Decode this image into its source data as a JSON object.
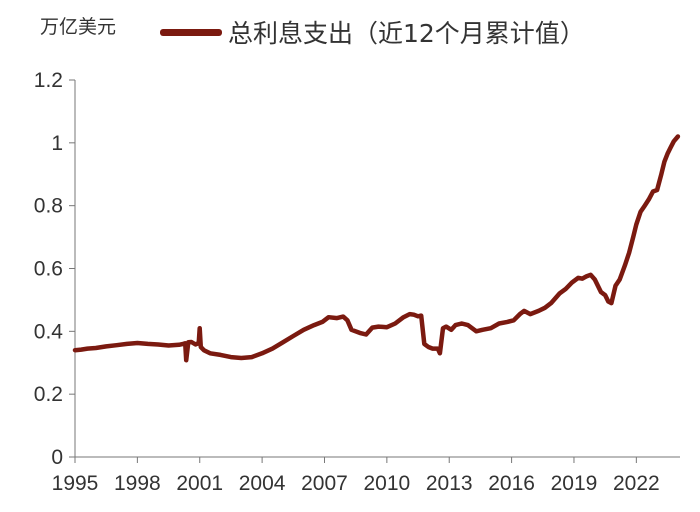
{
  "chart_data": {
    "type": "line",
    "unit_label": "万亿美元",
    "color": "#7B1A10",
    "ylim": [
      0,
      1.2
    ],
    "y_ticks": [
      "0",
      "0.2",
      "0.4",
      "0.6",
      "0.8",
      "1",
      "1.2"
    ],
    "xlim": [
      1995.0,
      2024.1
    ],
    "x_ticks": [
      "1995",
      "1998",
      "2001",
      "2004",
      "2007",
      "2010",
      "2013",
      "2016",
      "2019",
      "2022"
    ],
    "grid": false,
    "legend_position": "top",
    "series": [
      {
        "name": "总利息支出（近12个月累计值）",
        "x": [
          1995.0,
          1995.3,
          1995.6,
          1996.0,
          1996.5,
          1997.0,
          1997.5,
          1998.0,
          1998.5,
          1999.0,
          1999.5,
          2000.0,
          2000.2,
          2000.3,
          2000.35,
          2000.45,
          2000.6,
          2000.8,
          2000.85,
          2000.95,
          2001.0,
          2001.05,
          2001.2,
          2001.5,
          2002.0,
          2002.5,
          2003.0,
          2003.5,
          2004.0,
          2004.5,
          2005.0,
          2005.5,
          2006.0,
          2006.5,
          2006.9,
          2007.2,
          2007.6,
          2007.9,
          2008.1,
          2008.3,
          2008.7,
          2009.0,
          2009.3,
          2009.6,
          2010.0,
          2010.4,
          2010.8,
          2011.1,
          2011.3,
          2011.5,
          2011.65,
          2011.8,
          2012.0,
          2012.2,
          2012.45,
          2012.55,
          2012.7,
          2012.85,
          2013.1,
          2013.3,
          2013.6,
          2013.9,
          2014.3,
          2014.6,
          2015.0,
          2015.4,
          2015.8,
          2016.1,
          2016.4,
          2016.6,
          2016.9,
          2017.3,
          2017.6,
          2017.9,
          2018.3,
          2018.6,
          2018.9,
          2019.2,
          2019.4,
          2019.6,
          2019.8,
          2020.0,
          2020.3,
          2020.5,
          2020.65,
          2020.8,
          2021.0,
          2021.2,
          2021.45,
          2021.65,
          2021.85,
          2022.0,
          2022.2,
          2022.4,
          2022.6,
          2022.8,
          2023.0,
          2023.2,
          2023.35,
          2023.5,
          2023.65,
          2023.8,
          2024.0
        ],
        "y": [
          0.34,
          0.342,
          0.345,
          0.347,
          0.352,
          0.356,
          0.36,
          0.363,
          0.36,
          0.358,
          0.355,
          0.357,
          0.36,
          0.362,
          0.308,
          0.365,
          0.366,
          0.358,
          0.36,
          0.362,
          0.41,
          0.35,
          0.34,
          0.33,
          0.325,
          0.318,
          0.315,
          0.318,
          0.33,
          0.345,
          0.365,
          0.385,
          0.405,
          0.42,
          0.43,
          0.445,
          0.442,
          0.447,
          0.435,
          0.405,
          0.395,
          0.39,
          0.412,
          0.415,
          0.413,
          0.425,
          0.445,
          0.455,
          0.453,
          0.448,
          0.45,
          0.36,
          0.35,
          0.345,
          0.345,
          0.33,
          0.41,
          0.415,
          0.405,
          0.42,
          0.425,
          0.42,
          0.4,
          0.405,
          0.41,
          0.425,
          0.43,
          0.435,
          0.455,
          0.465,
          0.455,
          0.465,
          0.475,
          0.49,
          0.52,
          0.535,
          0.555,
          0.57,
          0.568,
          0.575,
          0.58,
          0.565,
          0.525,
          0.515,
          0.495,
          0.49,
          0.545,
          0.565,
          0.61,
          0.65,
          0.7,
          0.74,
          0.78,
          0.8,
          0.82,
          0.845,
          0.85,
          0.9,
          0.94,
          0.965,
          0.985,
          1.005,
          1.02
        ]
      }
    ]
  }
}
